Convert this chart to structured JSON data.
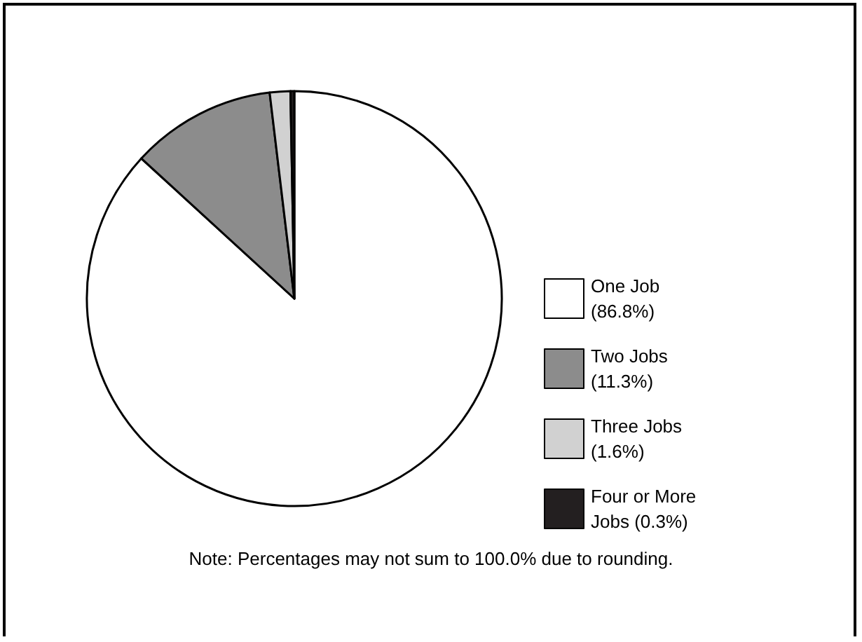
{
  "chart_data": {
    "type": "pie",
    "categories": [
      "One Job (86.8%)",
      "Two Jobs (11.3%)",
      "Three Jobs (1.6%)",
      "Four or More Jobs (0.3%)"
    ],
    "values": [
      86.8,
      11.3,
      1.6,
      0.3
    ],
    "colors": [
      "#ffffff",
      "#8c8c8c",
      "#d1d1d1",
      "#231f20"
    ],
    "legend": "right",
    "annotations": [
      "Note: Percentages may not sum to 100.0% due to rounding."
    ]
  }
}
